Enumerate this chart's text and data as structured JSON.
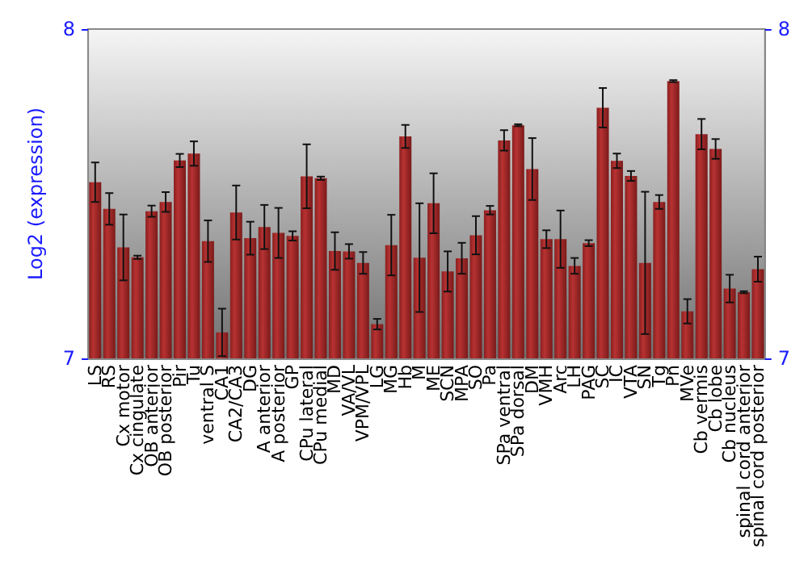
{
  "chart_data": {
    "type": "bar",
    "ylabel": "Log2 (expression)",
    "categories": [
      "LS",
      "RS",
      "Cx motor",
      "Cx cingulate",
      "OB anterior",
      "OB posterior",
      "Pir",
      "Tu",
      "ventral S",
      "CA1",
      "CA2/CA3",
      "DG",
      "A anterior",
      "A posterior",
      "GP",
      "CPu lateral",
      "CPu medial",
      "MD",
      "VA/VL",
      "VPM/VPL",
      "LG",
      "MG",
      "Hb",
      "M",
      "ME",
      "SCN",
      "MPA",
      "SO",
      "Pa",
      "SPa ventral",
      "SPa dorsal",
      "DM",
      "VMH",
      "Arc",
      "LH",
      "PAG",
      "SC",
      "IC",
      "VTA",
      "SN",
      "Tg",
      "Pn",
      "MVe",
      "Cb vermis",
      "Cb lobe",
      "Cb nucleus",
      "spinal cord anterior",
      "spinal cord posterior"
    ],
    "values": [
      7.535,
      7.454,
      7.337,
      7.307,
      7.447,
      7.475,
      7.601,
      7.622,
      7.356,
      7.079,
      7.443,
      7.365,
      7.399,
      7.381,
      7.372,
      7.553,
      7.547,
      7.326,
      7.325,
      7.29,
      7.104,
      7.344,
      7.674,
      7.306,
      7.471,
      7.264,
      7.304,
      7.374,
      7.45,
      7.662,
      7.708,
      7.575,
      7.362,
      7.362,
      7.281,
      7.35,
      7.761,
      7.6,
      7.554,
      7.29,
      7.475,
      7.842,
      7.143,
      7.681,
      7.636,
      7.212,
      7.201,
      7.271
    ],
    "errors": [
      0.06,
      0.048,
      0.1,
      0.005,
      0.017,
      0.03,
      0.02,
      0.037,
      0.063,
      0.072,
      0.082,
      0.05,
      0.067,
      0.076,
      0.014,
      0.097,
      0.005,
      0.057,
      0.022,
      0.033,
      0.016,
      0.092,
      0.035,
      0.165,
      0.091,
      0.061,
      0.047,
      0.058,
      0.013,
      0.031,
      0.003,
      0.094,
      0.027,
      0.087,
      0.024,
      0.009,
      0.06,
      0.022,
      0.015,
      0.216,
      0.021,
      0.003,
      0.037,
      0.046,
      0.03,
      0.042,
      0.003,
      0.038
    ],
    "color": "#b83232",
    "ylim": [
      7,
      8
    ],
    "yticks": [
      7,
      8
    ],
    "y2lim": [
      7,
      8
    ],
    "y2ticks": [
      7,
      8
    ]
  }
}
